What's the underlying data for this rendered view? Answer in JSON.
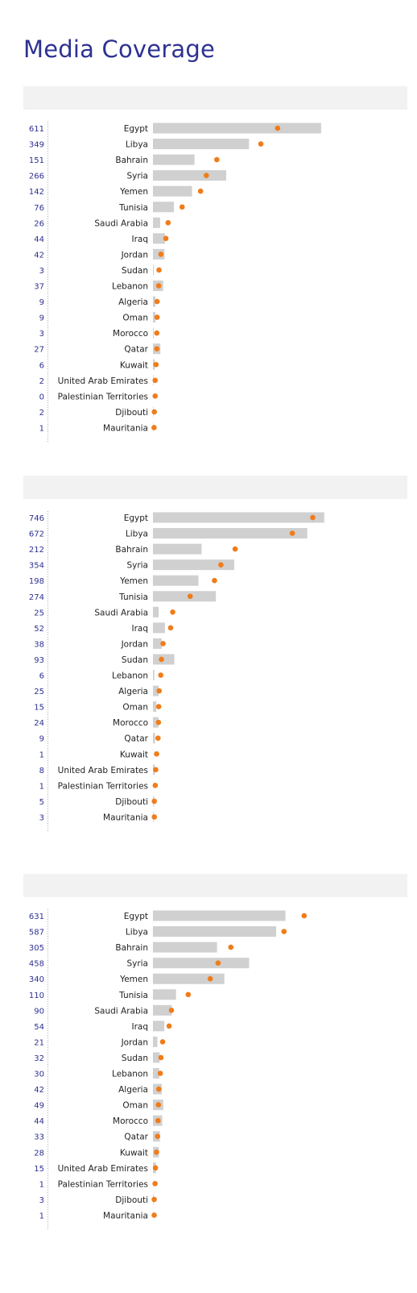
{
  "title": "Media Coverage",
  "chart_data": [
    {
      "type": "bar",
      "title": "",
      "categories": [
        "Egypt",
        "Libya",
        "Bahrain",
        "Syria",
        "Yemen",
        "Tunisia",
        "Saudi Arabia",
        "Iraq",
        "Jordan",
        "Sudan",
        "Lebanon",
        "Algeria",
        "Oman",
        "Morocco",
        "Qatar",
        "Kuwait",
        "United Arab Emirates",
        "Palestinian Territories",
        "Djibouti",
        "Mauritania"
      ],
      "values": [
        611,
        349,
        151,
        266,
        142,
        76,
        26,
        44,
        42,
        3,
        37,
        9,
        9,
        3,
        27,
        6,
        2,
        0,
        2,
        1
      ],
      "markers": [
        453,
        392,
        232,
        194,
        173,
        106,
        55,
        47,
        29,
        22,
        21,
        15,
        15,
        14,
        14,
        11,
        8,
        8,
        5,
        4
      ],
      "bar_scale_max": 740
    },
    {
      "type": "bar",
      "title": "",
      "categories": [
        "Egypt",
        "Libya",
        "Bahrain",
        "Syria",
        "Yemen",
        "Tunisia",
        "Saudi Arabia",
        "Iraq",
        "Jordan",
        "Sudan",
        "Lebanon",
        "Algeria",
        "Oman",
        "Morocco",
        "Qatar",
        "Kuwait",
        "United Arab Emirates",
        "Palestinian Territories",
        "Djibouti",
        "Mauritania"
      ],
      "values": [
        746,
        672,
        212,
        354,
        198,
        274,
        25,
        52,
        38,
        93,
        6,
        25,
        15,
        24,
        9,
        1,
        8,
        1,
        5,
        3
      ],
      "markers": [
        696,
        607,
        358,
        296,
        268,
        162,
        86,
        77,
        44,
        37,
        34,
        27,
        25,
        24,
        22,
        16,
        12,
        10,
        6,
        6
      ],
      "bar_scale_max": 887
    },
    {
      "type": "bar",
      "title": "",
      "categories": [
        "Egypt",
        "Libya",
        "Bahrain",
        "Syria",
        "Yemen",
        "Tunisia",
        "Saudi Arabia",
        "Iraq",
        "Jordan",
        "Sudan",
        "Lebanon",
        "Algeria",
        "Oman",
        "Morocco",
        "Qatar",
        "Kuwait",
        "United Arab Emirates",
        "Palestinian Territories",
        "Djibouti",
        "Mauritania"
      ],
      "values": [
        631,
        587,
        305,
        458,
        340,
        110,
        90,
        54,
        21,
        32,
        30,
        42,
        49,
        44,
        33,
        28,
        15,
        1,
        3,
        1
      ],
      "markers": [
        720,
        624,
        371,
        310,
        273,
        168,
        88,
        77,
        46,
        38,
        35,
        28,
        26,
        24,
        22,
        17,
        12,
        10,
        6,
        6
      ],
      "bar_scale_max": 970
    }
  ]
}
